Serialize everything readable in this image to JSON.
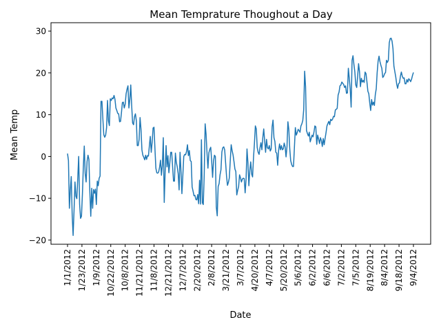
{
  "chart_data": {
    "type": "line",
    "title": "Mean Temprature Thoughout a Day",
    "xlabel": "Date",
    "ylabel": "Mean Temp",
    "ylim": [
      -21,
      32
    ],
    "yticks": [
      -20,
      -10,
      0,
      10,
      20,
      30
    ],
    "grid": false,
    "legend": "none",
    "line_color": "#1f77b4",
    "x_tick_labels": [
      "1/1/2012",
      "1/23/2012",
      "1/9/2012",
      "10/22/2012",
      "10/8/2012",
      "11/21/2012",
      "11/8/2012",
      "12/21/2012",
      "12/7/2012",
      "2/20/2012",
      "2/8/2012",
      "3/21/2012",
      "3/7/2012",
      "4/20/2012",
      "4/7/2012",
      "5/20/2012",
      "5/6/2012",
      "6/2/2012",
      "6/6/2012",
      "7/2/2012",
      "7/5/2012",
      "8/19/2012",
      "8/4/2012",
      "9/18/2012",
      "9/4/2012"
    ],
    "point_count": 366,
    "series": [
      {
        "values": [
          0.7,
          -1.0,
          -12.4,
          -8.0,
          -4.8,
          -14.0,
          -18.9,
          -13.0,
          -6.1,
          -9.5,
          -10.1,
          -5.2,
          0.0,
          -11.4,
          -14.8,
          -14.3,
          -9.1,
          -2.5,
          2.5,
          -4.1,
          -6.1,
          -1.2,
          0.3,
          -0.7,
          -8.6,
          -14.3,
          -7.6,
          -12.4,
          -7.9,
          -8.8,
          -7.8,
          -11.5,
          -5.9,
          -7.0,
          -5.2,
          -4.7,
          13.2,
          13.2,
          9.0,
          5.2,
          4.6,
          5.1,
          6.9,
          13.4,
          8.5,
          7.4,
          13.8,
          13.4,
          14.0,
          13.8,
          14.6,
          13.7,
          11.6,
          11.0,
          10.3,
          10.2,
          8.3,
          8.4,
          10.5,
          12.9,
          13.0,
          11.6,
          12.5,
          15.0,
          16.1,
          16.9,
          11.6,
          13.6,
          17.1,
          12.1,
          8.0,
          7.6,
          9.5,
          10.2,
          8.6,
          2.6,
          2.6,
          4.1,
          9.3,
          6.5,
          1.6,
          0.3,
          -0.2,
          -0.8,
          0.3,
          -0.7,
          0.2,
          0.1,
          2.5,
          4.8,
          1.0,
          3.4,
          6.8,
          7.0,
          1.9,
          -2.8,
          -3.9,
          -4.0,
          -3.7,
          -2.6,
          -0.9,
          -4.5,
          -2.1,
          4.5,
          -11.0,
          -3.5,
          2.6,
          -2.5,
          0.2,
          -3.9,
          -1.5,
          1.0,
          1.0,
          -2.4,
          -5.9,
          -5.9,
          0.8,
          -1.4,
          -2.5,
          -4.1,
          -8.0,
          1.0,
          -3.4,
          -8.9,
          -4.6,
          0.0,
          0.5,
          0.4,
          1.2,
          2.8,
          0.2,
          1.4,
          -1.0,
          -1.2,
          -7.3,
          -8.3,
          -9.4,
          -9.3,
          -10.3,
          -10.4,
          -9.1,
          -11.3,
          -5.7,
          -11.4,
          4.0,
          -11.1,
          -11.5,
          -4.4,
          7.8,
          5.3,
          0.8,
          -2.8,
          0.9,
          1.7,
          2.2,
          -1.0,
          -5.0,
          -1.1,
          0.3,
          0.0,
          -12.1,
          -14.2,
          -7.2,
          -6.5,
          -4.4,
          -3.2,
          1.1,
          2.1,
          2.3,
          1.6,
          -1.5,
          -4.7,
          -6.9,
          -6.2,
          -5.1,
          -1.0,
          2.8,
          1.4,
          0.4,
          -1.2,
          -3.0,
          -3.6,
          -9.2,
          -8.1,
          -7.2,
          -4.4,
          -5.1,
          -6.1,
          -5.4,
          -5.2,
          -5.3,
          -8.7,
          -5.5,
          1.8,
          -1.5,
          -7.0,
          -3.4,
          -1.3,
          -4.2,
          -4.9,
          -0.3,
          3.1,
          7.3,
          6.6,
          2.1,
          1.0,
          0.5,
          2.1,
          3.3,
          1.6,
          4.5,
          6.6,
          3.7,
          1.0,
          4.1,
          2.1,
          1.8,
          2.6,
          1.3,
          1.8,
          7.1,
          8.7,
          4.5,
          3.6,
          1.0,
          0.8,
          -2.1,
          1.5,
          3.0,
          1.6,
          2.6,
          1.6,
          1.8,
          3.2,
          2.3,
          -0.1,
          2.3,
          8.3,
          6.4,
          1.8,
          -1.0,
          -1.9,
          -2.4,
          -2.4,
          2.2,
          6.9,
          5.1,
          5.7,
          6.5,
          6.2,
          5.8,
          7.3,
          7.8,
          8.6,
          11.2,
          20.4,
          16.7,
          6.2,
          5.5,
          4.9,
          5.8,
          3.5,
          4.3,
          5.1,
          4.7,
          5.8,
          7.3,
          7.1,
          2.9,
          5.1,
          4.2,
          3.1,
          4.5,
          3.8,
          2.4,
          4.3,
          2.8,
          4.3,
          5.7,
          7.3,
          7.9,
          8.4,
          7.6,
          8.9,
          8.6,
          8.9,
          9.6,
          9.5,
          11.1,
          11.3,
          11.5,
          14.7,
          15.4,
          16.9,
          17.1,
          17.8,
          17.5,
          17.2,
          16.5,
          16.9,
          15.1,
          15.2,
          21.1,
          18.7,
          16.1,
          11.8,
          23.0,
          24.1,
          22.0,
          20.2,
          17.1,
          16.5,
          19.2,
          22.2,
          20.3,
          16.7,
          18.7,
          17.8,
          18.2,
          17.7,
          20.2,
          19.8,
          17.8,
          15.6,
          15.0,
          12.8,
          11.0,
          13.6,
          12.3,
          13.0,
          12.2,
          14.8,
          16.2,
          20.1,
          22.8,
          24.0,
          22.7,
          21.8,
          21.1,
          18.9,
          19.2,
          19.8,
          20.1,
          23.0,
          22.5,
          23.0,
          27.2,
          28.2,
          28.3,
          27.6,
          25.8,
          21.6,
          20.3,
          19.0,
          17.3,
          16.3,
          17.4,
          17.6,
          19.2,
          20.2,
          19.2,
          18.7,
          18.8,
          17.4,
          17.4,
          18.4,
          17.8,
          18.6,
          18.3,
          17.9,
          18.5,
          19.4,
          20.1
        ]
      }
    ]
  }
}
